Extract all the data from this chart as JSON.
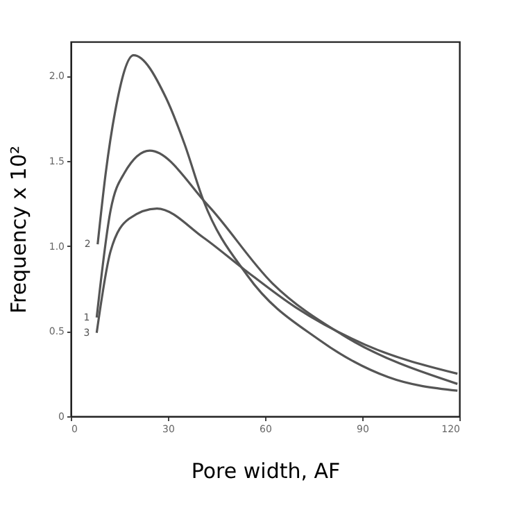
{
  "chart_data": {
    "type": "line",
    "xlabel": "Pore width, AF",
    "ylabel": "Frequency x 10²",
    "xlim": [
      0,
      120
    ],
    "xticks": [
      0,
      30,
      60,
      90,
      120
    ],
    "ylim": [
      0,
      2.2
    ],
    "yticks": [
      0,
      0.5,
      {
        "value": 1.0,
        "label": "1.0"
      },
      {
        "value": 1.5,
        "label": "1.5"
      },
      {
        "value": 2.0,
        "label": "2.0"
      }
    ],
    "grid": false,
    "marker": "none",
    "line_style": "solid",
    "series": [
      {
        "name": "2",
        "color": "#555555",
        "x": [
          8.3,
          10.8,
          13.7,
          19.4,
          29.4,
          35.1,
          40.9,
          54.4,
          76.6,
          98,
          119.4
        ],
        "values": [
          1.01,
          1.43,
          1.79,
          2.12,
          1.87,
          1.6,
          1.27,
          0.83,
          0.45,
          0.23,
          0.15
        ]
      },
      {
        "name": "1",
        "color": "#555555",
        "x": [
          8,
          12.3,
          16.6,
          24.4,
          42.3,
          62.3,
          83.7,
          119.4
        ],
        "values": [
          0.58,
          1.21,
          1.43,
          1.56,
          1.24,
          0.78,
          0.48,
          0.19
        ]
      },
      {
        "name": "3",
        "color": "#555555",
        "x": [
          8,
          12.3,
          18,
          26.6,
          40.9,
          53.7,
          69.4,
          90.9,
          119.4
        ],
        "values": [
          0.49,
          0.97,
          1.16,
          1.22,
          1.05,
          0.86,
          0.64,
          0.42,
          0.25
        ]
      }
    ]
  }
}
